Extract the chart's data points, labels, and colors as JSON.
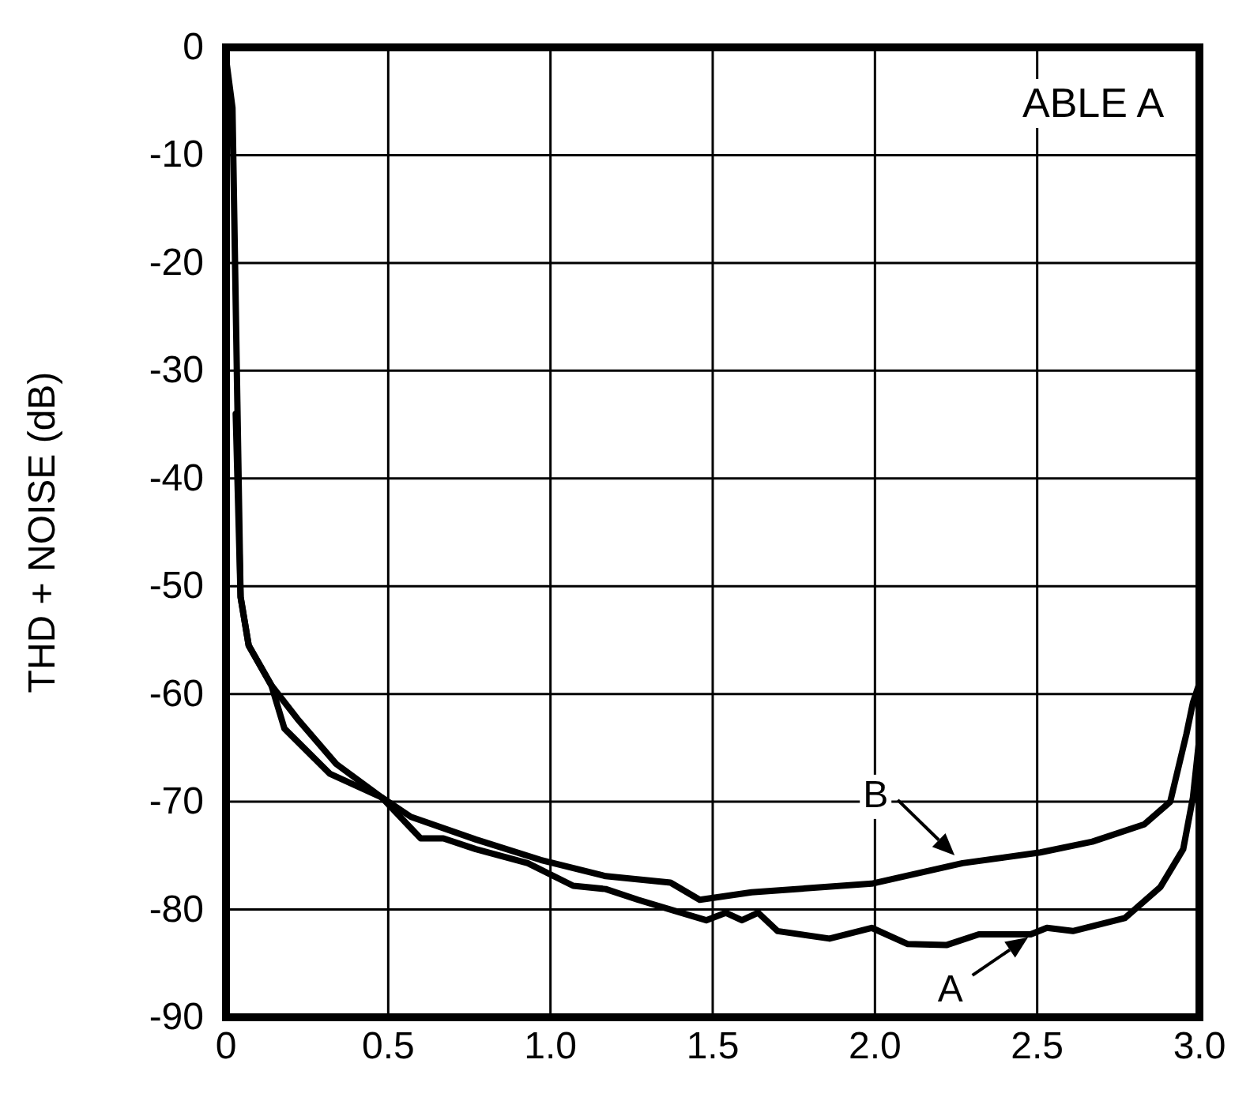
{
  "chart_data": {
    "type": "line",
    "ylabel": "THD + NOISE (dB)",
    "xlim": [
      0,
      3
    ],
    "xticks": [
      0,
      0.5,
      {
        "value": 1,
        "label": "1.0"
      },
      1.5,
      {
        "value": 2,
        "label": "2.0"
      },
      2.5,
      {
        "value": 3,
        "label": "3.0"
      }
    ],
    "ylim": [
      -90,
      0
    ],
    "yticks": [
      -90,
      -80,
      -70,
      -60,
      -50,
      -40,
      -30,
      -20,
      -10,
      0
    ],
    "grid": true,
    "line_style": "solid",
    "marker": "none",
    "series": [
      {
        "color": "#000000",
        "x": [
          0.03,
          0.045,
          0.07,
          0.14,
          0.18,
          0.32,
          0.48,
          0.6,
          0.67,
          0.77,
          0.93,
          1.07,
          1.17,
          1.27,
          1.38,
          1.48,
          1.54,
          1.59,
          1.64,
          1.7,
          1.86,
          1.99,
          2.1,
          2.22,
          2.32,
          2.48,
          2.53,
          2.61,
          2.77,
          2.88,
          2.95,
          2.98,
          3.0
        ],
        "values": [
          -34,
          -51,
          -55.5,
          -59.2,
          -63.2,
          -67.4,
          -69.6,
          -73.4,
          -73.4,
          -74.4,
          -75.7,
          -77.8,
          -78.1,
          -79.1,
          -80.1,
          -81,
          -80.3,
          -81,
          -80.3,
          -82,
          -82.7,
          -81.7,
          -83.2,
          -83.3,
          -82.3,
          -82.3,
          -81.7,
          -82,
          -80.8,
          -77.9,
          -74.4,
          -69.6,
          -64
        ]
      },
      {
        "color": "#000000",
        "x": [
          0.0,
          0.02,
          0.045,
          0.07,
          0.14,
          0.22,
          0.34,
          0.48,
          0.57,
          0.77,
          0.97,
          1.17,
          1.37,
          1.46,
          1.62,
          1.99,
          2.27,
          2.51,
          2.67,
          2.83,
          2.91,
          2.96,
          2.98,
          3.0
        ],
        "values": [
          -1,
          -5.6,
          -51,
          -55.5,
          -59.2,
          -62.3,
          -66.5,
          -69.6,
          -71.4,
          -73.5,
          -75.4,
          -76.9,
          -77.5,
          -79.1,
          -78.4,
          -77.6,
          -75.7,
          -74.7,
          -73.7,
          -72.1,
          -70,
          -63.7,
          -60.8,
          -59
        ]
      }
    ],
    "annotations": [
      {
        "text": "B",
        "x": 2.27,
        "y": -75.7
      },
      {
        "text": "A",
        "x": 2.5,
        "y": -82
      },
      "ABLE A"
    ]
  }
}
